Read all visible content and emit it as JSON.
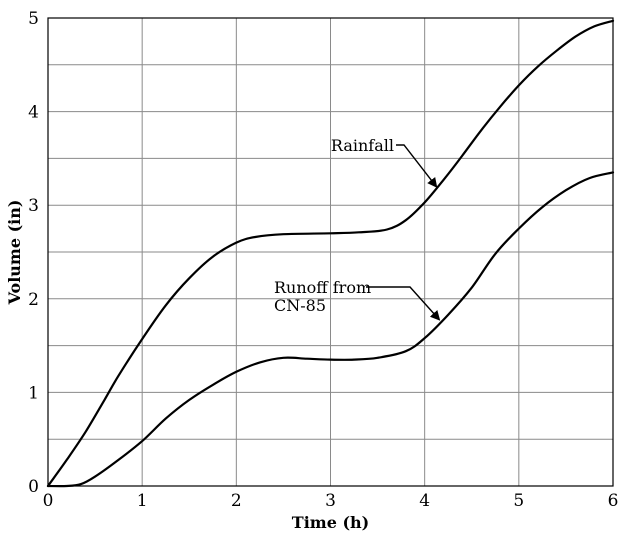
{
  "chart_data": {
    "type": "line",
    "title": "",
    "xlabel": "Time (h)",
    "ylabel": "Volume (in)",
    "xlim": [
      0,
      6
    ],
    "ylim": [
      0,
      5
    ],
    "x_ticks": [
      "0",
      "1",
      "2",
      "3",
      "4",
      "5",
      "6"
    ],
    "y_ticks": [
      "0",
      "1",
      "2",
      "3",
      "4",
      "5"
    ],
    "grid": true,
    "series": [
      {
        "name": "Rainfall",
        "x": [
          0,
          0.2,
          0.4,
          0.6,
          0.75,
          1.0,
          1.25,
          1.5,
          1.75,
          2.0,
          2.2,
          2.5,
          3.0,
          3.3,
          3.6,
          3.8,
          4.0,
          4.2,
          4.4,
          4.6,
          4.8,
          5.0,
          5.2,
          5.4,
          5.6,
          5.8,
          6.0
        ],
        "values": [
          0,
          0.28,
          0.58,
          0.92,
          1.18,
          1.57,
          1.93,
          2.22,
          2.45,
          2.6,
          2.66,
          2.69,
          2.7,
          2.71,
          2.74,
          2.84,
          3.03,
          3.27,
          3.53,
          3.8,
          4.05,
          4.28,
          4.48,
          4.65,
          4.8,
          4.91,
          4.97
        ]
      },
      {
        "name": "Runoff from CN-85",
        "x": [
          0,
          0.2,
          0.35,
          0.5,
          0.75,
          1.0,
          1.25,
          1.5,
          1.75,
          2.0,
          2.25,
          2.5,
          2.75,
          3.0,
          3.25,
          3.5,
          3.8,
          4.0,
          4.25,
          4.5,
          4.75,
          5.0,
          5.25,
          5.5,
          5.75,
          6.0
        ],
        "values": [
          0,
          0.0,
          0.02,
          0.1,
          0.28,
          0.48,
          0.72,
          0.92,
          1.08,
          1.22,
          1.32,
          1.37,
          1.36,
          1.35,
          1.35,
          1.37,
          1.44,
          1.58,
          1.83,
          2.12,
          2.48,
          2.75,
          2.98,
          3.16,
          3.29,
          3.35
        ]
      }
    ],
    "annotations": [
      {
        "text": "Rainfall",
        "target_series": "Rainfall"
      },
      {
        "text_lines": [
          "Runoff from",
          "CN-85"
        ],
        "target_series": "Runoff from CN-85"
      }
    ]
  }
}
